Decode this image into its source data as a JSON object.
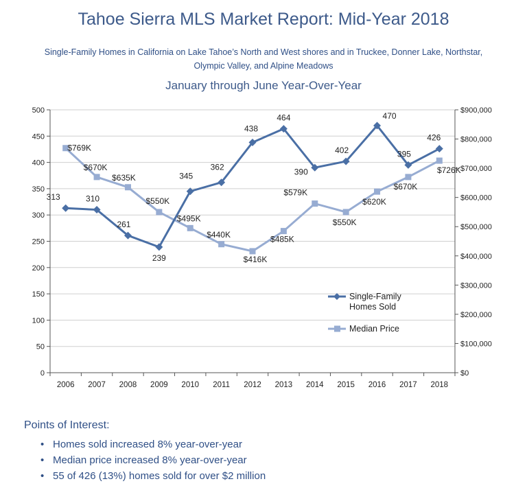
{
  "header": {
    "title": "Tahoe Sierra MLS Market Report: Mid-Year 2018",
    "subtitle_line1": "Single-Family Homes in California on Lake Tahoe’s North and West shores and in Truckee, Donner Lake, Northstar,",
    "subtitle_line2": "Olympic Valley, and Alpine Meadows",
    "period": "January through June Year-Over-Year"
  },
  "chart_data": {
    "type": "line",
    "categories": [
      "2006",
      "2007",
      "2008",
      "2009",
      "2010",
      "2011",
      "2012",
      "2013",
      "2014",
      "2015",
      "2016",
      "2017",
      "2018"
    ],
    "series": [
      {
        "name": "Single-Family Homes Sold",
        "axis": "left",
        "color": "#4a6fa5",
        "marker": "diamond",
        "values": [
          313,
          310,
          261,
          239,
          345,
          362,
          438,
          464,
          390,
          402,
          470,
          395,
          426
        ],
        "labels": [
          "313",
          "310",
          "261",
          "239",
          "345",
          "362",
          "438",
          "464",
          "390",
          "402",
          "470",
          "395",
          "426"
        ]
      },
      {
        "name": "Median Price",
        "axis": "right",
        "color": "#97acd2",
        "marker": "square",
        "values": [
          769000,
          670000,
          635000,
          550000,
          495000,
          440000,
          416000,
          485000,
          579000,
          550000,
          620000,
          670000,
          726000
        ],
        "labels": [
          "$769K",
          "$670K",
          "$635K",
          "$550K",
          "$495K",
          "$440K",
          "$416K",
          "$485K",
          "$579K",
          "$550K",
          "$620K",
          "$670K",
          "$726K"
        ]
      }
    ],
    "y_left": {
      "min": 0,
      "max": 500,
      "ticks": [
        0,
        50,
        100,
        150,
        200,
        250,
        300,
        350,
        400,
        450,
        500
      ],
      "tick_labels": [
        "0",
        "50",
        "100",
        "150",
        "200",
        "250",
        "300",
        "350",
        "400",
        "450",
        "500"
      ]
    },
    "y_right": {
      "min": 0,
      "max": 900000,
      "ticks": [
        0,
        100000,
        200000,
        300000,
        400000,
        500000,
        600000,
        700000,
        800000,
        900000
      ],
      "tick_labels": [
        "$0",
        "$100,000",
        "$200,000",
        "$300,000",
        "$400,000",
        "$500,000",
        "$600,000",
        "$700,000",
        "$800,000",
        "$900,000"
      ]
    },
    "grid": true,
    "legend": {
      "position": "right",
      "entries": [
        "Single-Family Homes Sold",
        "Median Price"
      ]
    }
  },
  "points_of_interest": {
    "title": "Points of Interest:",
    "bullet": "•",
    "items": [
      "Homes sold increased 8% year-over-year",
      "Median price increased 8% year-over-year",
      "55 of 426 (13%) homes sold for over $2 million"
    ]
  }
}
